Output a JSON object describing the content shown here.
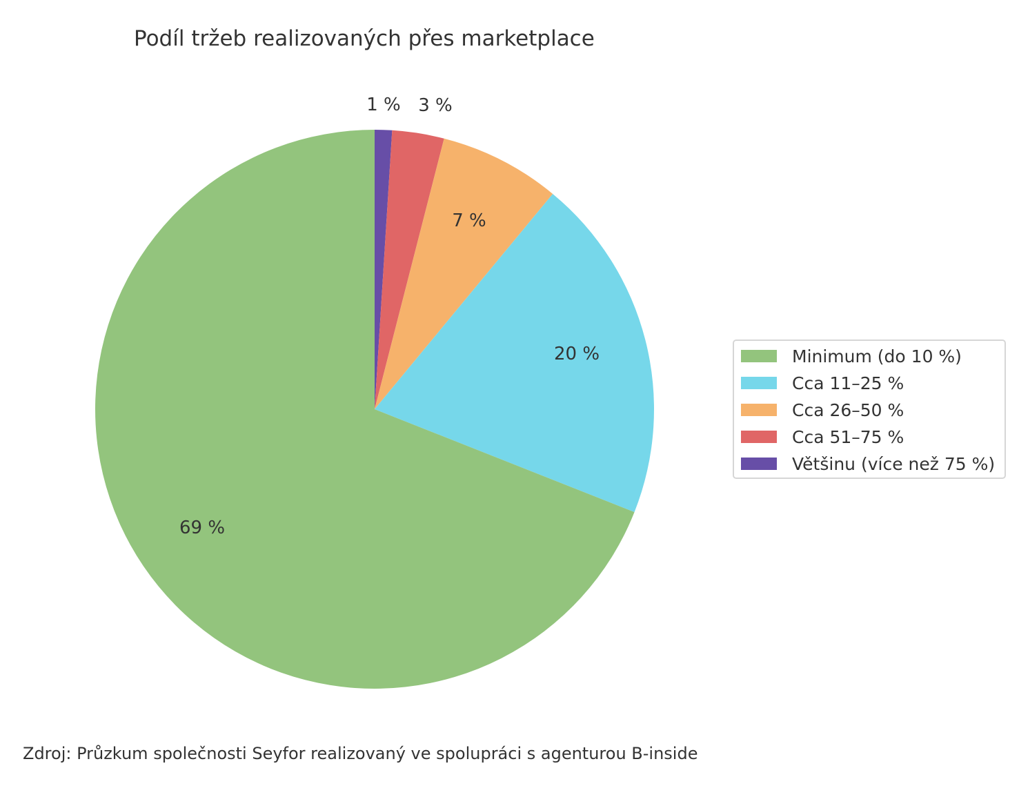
{
  "chart_data": {
    "type": "pie",
    "title": "Podíl tržeb realizovaných přes marketplace",
    "categories": [
      "Minimum (do 10 %)",
      "Cca 11–25 %",
      "Cca 26–50 %",
      "Cca 51–75 %",
      "Většinu (více než 75 %)"
    ],
    "values": [
      69,
      20,
      7,
      3,
      1
    ],
    "colors": [
      "#93c47d",
      "#76d7ea",
      "#f6b26b",
      "#e06666",
      "#674ea7"
    ],
    "data_labels": [
      "69 %",
      "20 %",
      "7 %",
      "3 %",
      "1 %"
    ],
    "legend_position": "right",
    "start_angle": 90,
    "direction": "counterclockwise from top (Většinu just right of top)"
  },
  "labels": {
    "minimum": "69 %",
    "cca11": "20 %",
    "cca26": "7 %",
    "cca51": "3 %",
    "vetsinu": "1 %"
  },
  "legend": {
    "items": [
      {
        "label": "Minimum (do 10 %)",
        "color": "#93c47d"
      },
      {
        "label": "Cca 11–25 %",
        "color": "#76d7ea"
      },
      {
        "label": "Cca 26–50 %",
        "color": "#f6b26b"
      },
      {
        "label": "Cca 51–75 %",
        "color": "#e06666"
      },
      {
        "label": "Většinu (více než 75 %)",
        "color": "#674ea7"
      }
    ]
  },
  "source": "Zdroj: Průzkum společnosti Seyfor realizovaný ve spolupráci s agenturou B-inside"
}
